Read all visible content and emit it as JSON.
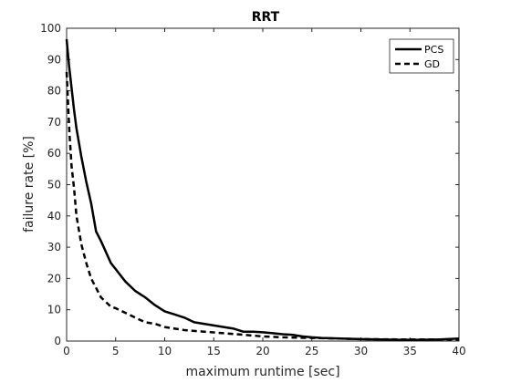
{
  "chart_data": {
    "type": "line",
    "title": "RRT",
    "xlabel": "maximum runtime [sec]",
    "ylabel": "failure rate [%]",
    "xlim": [
      0,
      40
    ],
    "ylim": [
      0,
      100
    ],
    "xticks": [
      0,
      5,
      10,
      15,
      20,
      25,
      30,
      35,
      40
    ],
    "yticks": [
      0,
      10,
      20,
      30,
      40,
      50,
      60,
      70,
      80,
      90,
      100
    ],
    "grid": false,
    "legend_position": "top-right",
    "series": [
      {
        "name": "PCS",
        "style": "solid",
        "color": "#000000",
        "x": [
          0,
          0.1,
          0.25,
          0.5,
          0.75,
          1,
          1.5,
          2,
          2.5,
          3,
          3.5,
          4,
          4.5,
          5,
          5.5,
          6,
          6.5,
          7,
          7.5,
          8,
          9,
          10,
          11,
          12,
          13,
          14,
          15,
          16,
          17,
          18,
          19,
          20,
          21,
          22,
          23,
          24,
          25,
          26,
          28,
          30,
          32,
          34,
          36,
          38,
          40
        ],
        "y": [
          96.5,
          93,
          88,
          81,
          74,
          68,
          59,
          51,
          44,
          35,
          32,
          28.5,
          25,
          23,
          21,
          19,
          17.5,
          16,
          15,
          14,
          11.5,
          9.5,
          8.5,
          7.5,
          6,
          5.5,
          5,
          4.5,
          4,
          3,
          3,
          2.8,
          2.5,
          2.2,
          2,
          1.5,
          1.2,
          1,
          0.8,
          0.6,
          0.5,
          0.4,
          0.4,
          0.5,
          0.8
        ]
      },
      {
        "name": "GD",
        "style": "dashed",
        "color": "#000000",
        "x": [
          0,
          0.1,
          0.2,
          0.3,
          0.5,
          0.75,
          1,
          1.5,
          2,
          2.5,
          3,
          3.5,
          4,
          4.5,
          5,
          6,
          7,
          8,
          9,
          10,
          12,
          14,
          16,
          18,
          20,
          22,
          25,
          28,
          30,
          35,
          40
        ],
        "y": [
          86,
          79,
          72,
          66,
          56,
          49,
          40,
          31,
          25,
          20,
          17,
          14,
          12.5,
          11,
          10.5,
          9,
          7.5,
          6,
          5.5,
          4.5,
          3.5,
          3,
          2.5,
          2,
          1.5,
          1.2,
          1,
          0.8,
          0.6,
          0.5,
          0.5
        ]
      }
    ]
  }
}
